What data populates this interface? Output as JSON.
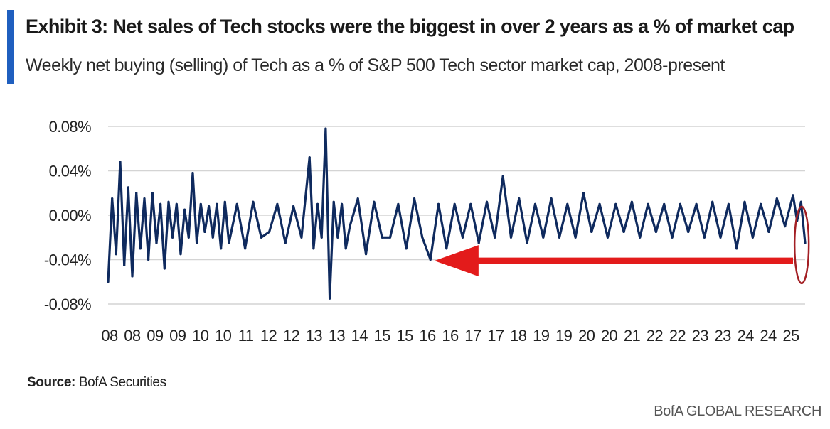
{
  "header": {
    "title": "Exhibit 3: Net sales of Tech stocks were the biggest in over 2 years as a % of market cap",
    "subtitle": "Weekly net buying (selling) of Tech as a % of S&P 500 Tech sector market cap, 2008-present"
  },
  "footer": {
    "source_label": "Source:",
    "source_text": "BofA Securities",
    "brand": "BofA GLOBAL RESEARCH"
  },
  "colors": {
    "accent": "#1f5fbf",
    "series": "#0f2a5e",
    "annotation": "#e31b1b",
    "highlight": "#a31f24",
    "grid": "#d4d4d4"
  },
  "chart_data": {
    "type": "line",
    "title": "",
    "xlabel": "",
    "ylabel": "",
    "ylim": [
      -0.08,
      0.08
    ],
    "y_ticks": [
      "0.08%",
      "0.04%",
      "0.00%",
      "-0.04%",
      "-0.08%"
    ],
    "y_tick_values": [
      0.08,
      0.04,
      0.0,
      -0.04,
      -0.08
    ],
    "x_tick_labels": [
      "08",
      "08",
      "09",
      "09",
      "10",
      "10",
      "11",
      "12",
      "12",
      "13",
      "13",
      "14",
      "15",
      "15",
      "16",
      "16",
      "17",
      "17",
      "18",
      "19",
      "19",
      "20",
      "20",
      "21",
      "22",
      "22",
      "23",
      "23",
      "24",
      "24",
      "25"
    ],
    "x_range": [
      2008.0,
      2025.3
    ],
    "grid": "horizontal",
    "legend": "none",
    "series": [
      {
        "name": "",
        "x": [
          2008.0,
          2008.1,
          2008.2,
          2008.3,
          2008.4,
          2008.5,
          2008.6,
          2008.7,
          2008.8,
          2008.9,
          2009.0,
          2009.1,
          2009.2,
          2009.3,
          2009.4,
          2009.5,
          2009.6,
          2009.7,
          2009.8,
          2009.9,
          2010.0,
          2010.1,
          2010.2,
          2010.3,
          2010.4,
          2010.5,
          2010.6,
          2010.7,
          2010.8,
          2010.9,
          2011.0,
          2011.2,
          2011.4,
          2011.6,
          2011.8,
          2012.0,
          2012.2,
          2012.4,
          2012.6,
          2012.8,
          2013.0,
          2013.1,
          2013.2,
          2013.3,
          2013.4,
          2013.5,
          2013.6,
          2013.7,
          2013.8,
          2013.9,
          2014.0,
          2014.2,
          2014.4,
          2014.6,
          2014.8,
          2015.0,
          2015.2,
          2015.4,
          2015.6,
          2015.8,
          2016.0,
          2016.2,
          2016.4,
          2016.6,
          2016.8,
          2017.0,
          2017.2,
          2017.4,
          2017.6,
          2017.8,
          2018.0,
          2018.2,
          2018.4,
          2018.6,
          2018.8,
          2019.0,
          2019.2,
          2019.4,
          2019.6,
          2019.8,
          2020.0,
          2020.2,
          2020.4,
          2020.6,
          2020.8,
          2021.0,
          2021.2,
          2021.4,
          2021.6,
          2021.8,
          2022.0,
          2022.2,
          2022.4,
          2022.6,
          2022.8,
          2023.0,
          2023.2,
          2023.4,
          2023.6,
          2023.8,
          2024.0,
          2024.2,
          2024.4,
          2024.6,
          2024.8,
          2025.0,
          2025.1,
          2025.2,
          2025.3
        ],
        "values": [
          -0.06,
          0.015,
          -0.035,
          0.048,
          -0.045,
          0.025,
          -0.055,
          0.02,
          -0.03,
          0.015,
          -0.04,
          0.02,
          -0.025,
          0.01,
          -0.048,
          0.012,
          -0.02,
          0.01,
          -0.035,
          0.005,
          -0.02,
          0.038,
          -0.025,
          0.01,
          -0.015,
          0.008,
          -0.02,
          0.01,
          -0.03,
          0.012,
          -0.025,
          0.01,
          -0.03,
          0.012,
          -0.02,
          -0.015,
          0.01,
          -0.025,
          0.008,
          -0.02,
          0.052,
          -0.03,
          0.01,
          -0.02,
          0.078,
          -0.075,
          0.012,
          -0.02,
          0.01,
          -0.03,
          -0.01,
          0.015,
          -0.035,
          0.012,
          -0.02,
          -0.02,
          0.01,
          -0.03,
          0.015,
          -0.02,
          -0.04,
          0.01,
          -0.03,
          0.01,
          -0.02,
          0.01,
          -0.025,
          0.012,
          -0.02,
          0.035,
          -0.02,
          0.015,
          -0.025,
          0.01,
          -0.02,
          0.015,
          -0.02,
          0.01,
          -0.02,
          0.02,
          -0.015,
          0.01,
          -0.02,
          0.01,
          -0.015,
          0.012,
          -0.02,
          0.01,
          -0.015,
          0.01,
          -0.02,
          0.01,
          -0.015,
          0.01,
          -0.02,
          0.012,
          -0.02,
          0.01,
          -0.03,
          0.012,
          -0.02,
          0.01,
          -0.015,
          0.015,
          -0.01,
          0.018,
          -0.005,
          0.012,
          -0.025
        ]
      }
    ],
    "annotations": [
      {
        "type": "arrow",
        "label": "",
        "x_from": 2025.0,
        "x_to": 2016.1,
        "y": -0.041
      },
      {
        "type": "ellipse",
        "label": "",
        "x": 2025.25,
        "y": -0.03
      }
    ]
  }
}
